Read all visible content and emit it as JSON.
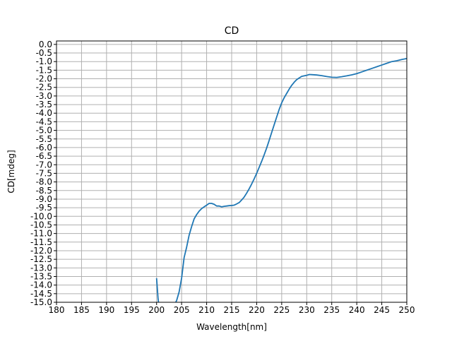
{
  "chart_data": {
    "type": "line",
    "title": "CD",
    "xlabel": "Wavelength[nm]",
    "ylabel": "CD[mdeg]",
    "xlim": [
      180,
      250
    ],
    "ylim": [
      -15.0,
      0.2
    ],
    "xticks": [
      180,
      185,
      190,
      195,
      200,
      205,
      210,
      215,
      220,
      225,
      230,
      235,
      240,
      245,
      250
    ],
    "yticks": [
      0.0,
      -0.5,
      -1.0,
      -1.5,
      -2.0,
      -2.5,
      -3.0,
      -3.5,
      -4.0,
      -4.5,
      -5.0,
      -5.5,
      -6.0,
      -6.5,
      -7.0,
      -7.5,
      -8.0,
      -8.5,
      -9.0,
      -9.5,
      -10.0,
      -10.5,
      -11.0,
      -11.5,
      -12.0,
      -12.5,
      -13.0,
      -13.5,
      -14.0,
      -14.5,
      -15.0
    ],
    "grid": true,
    "line_color": "#1f77b4",
    "grid_color": "#b0b0b0",
    "series": [
      {
        "x": [
          200.0,
          200.3,
          200.6,
          203.0,
          204.0,
          204.5,
          205.0,
          205.5,
          206.0,
          206.5,
          207.0,
          207.5,
          208.0,
          208.5,
          209.0,
          209.5,
          210.0,
          210.5,
          211.0,
          211.5,
          212.0,
          212.5,
          213.0,
          213.5,
          214.0,
          214.5,
          215.0,
          215.5,
          216.0,
          216.5,
          217.0,
          217.5,
          218.0,
          218.5,
          219.0,
          219.5,
          220.0,
          220.5,
          221.0,
          221.5,
          222.0,
          222.5,
          223.0,
          223.5,
          224.0,
          224.5,
          225.0,
          225.5,
          226.0,
          226.5,
          227.0,
          227.5,
          228.0,
          228.5,
          229.0,
          229.5,
          230.0,
          230.5,
          231.0,
          232.0,
          233.0,
          234.0,
          235.0,
          236.0,
          237.0,
          238.0,
          239.0,
          240.0,
          241.0,
          242.0,
          243.0,
          244.0,
          245.0,
          246.0,
          247.0,
          248.0,
          249.0,
          250.0
        ],
        "y": [
          -13.6,
          -14.8,
          -15.5,
          -15.5,
          -14.9,
          -14.4,
          -13.6,
          -12.4,
          -11.8,
          -11.1,
          -10.6,
          -10.15,
          -9.9,
          -9.7,
          -9.55,
          -9.45,
          -9.35,
          -9.25,
          -9.25,
          -9.3,
          -9.4,
          -9.4,
          -9.45,
          -9.42,
          -9.4,
          -9.38,
          -9.37,
          -9.35,
          -9.28,
          -9.2,
          -9.05,
          -8.88,
          -8.65,
          -8.4,
          -8.12,
          -7.82,
          -7.5,
          -7.15,
          -6.8,
          -6.42,
          -6.02,
          -5.58,
          -5.12,
          -4.67,
          -4.22,
          -3.78,
          -3.4,
          -3.1,
          -2.85,
          -2.6,
          -2.38,
          -2.2,
          -2.05,
          -1.95,
          -1.86,
          -1.83,
          -1.8,
          -1.75,
          -1.76,
          -1.78,
          -1.82,
          -1.87,
          -1.91,
          -1.92,
          -1.88,
          -1.83,
          -1.77,
          -1.7,
          -1.6,
          -1.5,
          -1.4,
          -1.3,
          -1.2,
          -1.1,
          -1.0,
          -0.95,
          -0.88,
          -0.82
        ]
      }
    ]
  }
}
